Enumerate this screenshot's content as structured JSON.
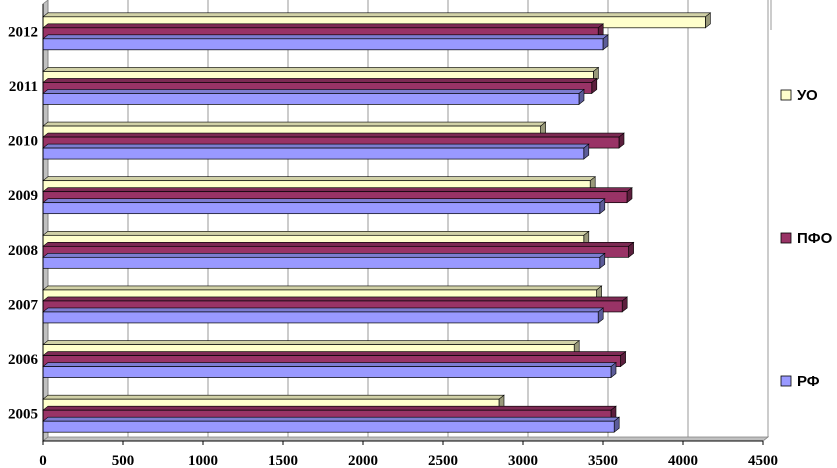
{
  "chart_data": {
    "type": "bar",
    "orientation": "horizontal",
    "categories": [
      "2005",
      "2006",
      "2007",
      "2008",
      "2009",
      "2010",
      "2011",
      "2012"
    ],
    "series": [
      {
        "name": "УО",
        "color": "#ffffcc",
        "values": [
          2850,
          3320,
          3460,
          3380,
          3420,
          3110,
          3440,
          4140
        ]
      },
      {
        "name": "ПФО",
        "color": "#993366",
        "values": [
          3550,
          3610,
          3620,
          3660,
          3650,
          3600,
          3430,
          3470
        ]
      },
      {
        "name": "РФ",
        "color": "#9999ff",
        "values": [
          3570,
          3550,
          3470,
          3480,
          3480,
          3380,
          3350,
          3500
        ]
      }
    ],
    "xlim": [
      0,
      4500
    ],
    "x_ticks": [
      "0",
      "500",
      "1000",
      "1500",
      "2000",
      "2500",
      "3000",
      "3500",
      "4000",
      "4500"
    ],
    "grid": true,
    "legend": {
      "position": "right"
    }
  }
}
